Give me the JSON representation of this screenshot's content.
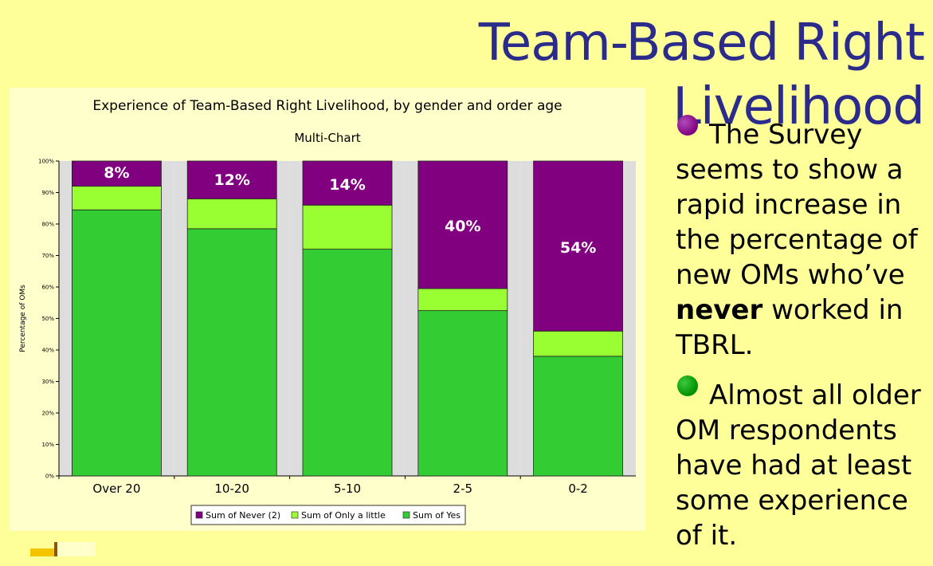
{
  "slide": {
    "title": "Team-Based Right Livelihood"
  },
  "chart_data": {
    "type": "bar",
    "stacked": true,
    "title": "Experience of Team-Based Right Livelihood, by gender and order age",
    "subtitle": "Multi-Chart",
    "xlabel": "",
    "ylabel": "Percentage of OMs",
    "ylim": [
      0,
      100
    ],
    "yticks": [
      "0%",
      "10%",
      "20%",
      "30%",
      "40%",
      "50%",
      "60%",
      "70%",
      "80%",
      "90%",
      "100%"
    ],
    "grid": false,
    "legend_position": "bottom",
    "categories": [
      "Over 20",
      "10-20",
      "5-10",
      "2-5",
      "0-2"
    ],
    "series": [
      {
        "name": "Sum of Yes",
        "color": "#33CC33",
        "values": [
          84.5,
          78.5,
          72,
          52.5,
          38
        ]
      },
      {
        "name": "Sum of Only a little",
        "color": "#99FF33",
        "values": [
          7.5,
          9.5,
          14,
          7,
          8
        ]
      },
      {
        "name": "Sum of Never (2)",
        "color": "#800080",
        "values": [
          8,
          12,
          14,
          40.5,
          54
        ]
      }
    ],
    "data_labels": [
      "8%",
      "12%",
      "14%",
      "40%",
      "54%"
    ]
  },
  "bullets": [
    {
      "color": "#800080",
      "text_before": "The Survey seems to show a rapid increase in the percentage of new OMs who’ve ",
      "bold": "never",
      "text_after": " worked in TBRL."
    },
    {
      "color": "#009000",
      "text_before": "Almost all older OM respondents have had at least some experience of it.",
      "bold": "",
      "text_after": ""
    }
  ],
  "icons": {
    "bullet_1": "purple-dot-icon",
    "bullet_2": "green-dot-icon"
  }
}
